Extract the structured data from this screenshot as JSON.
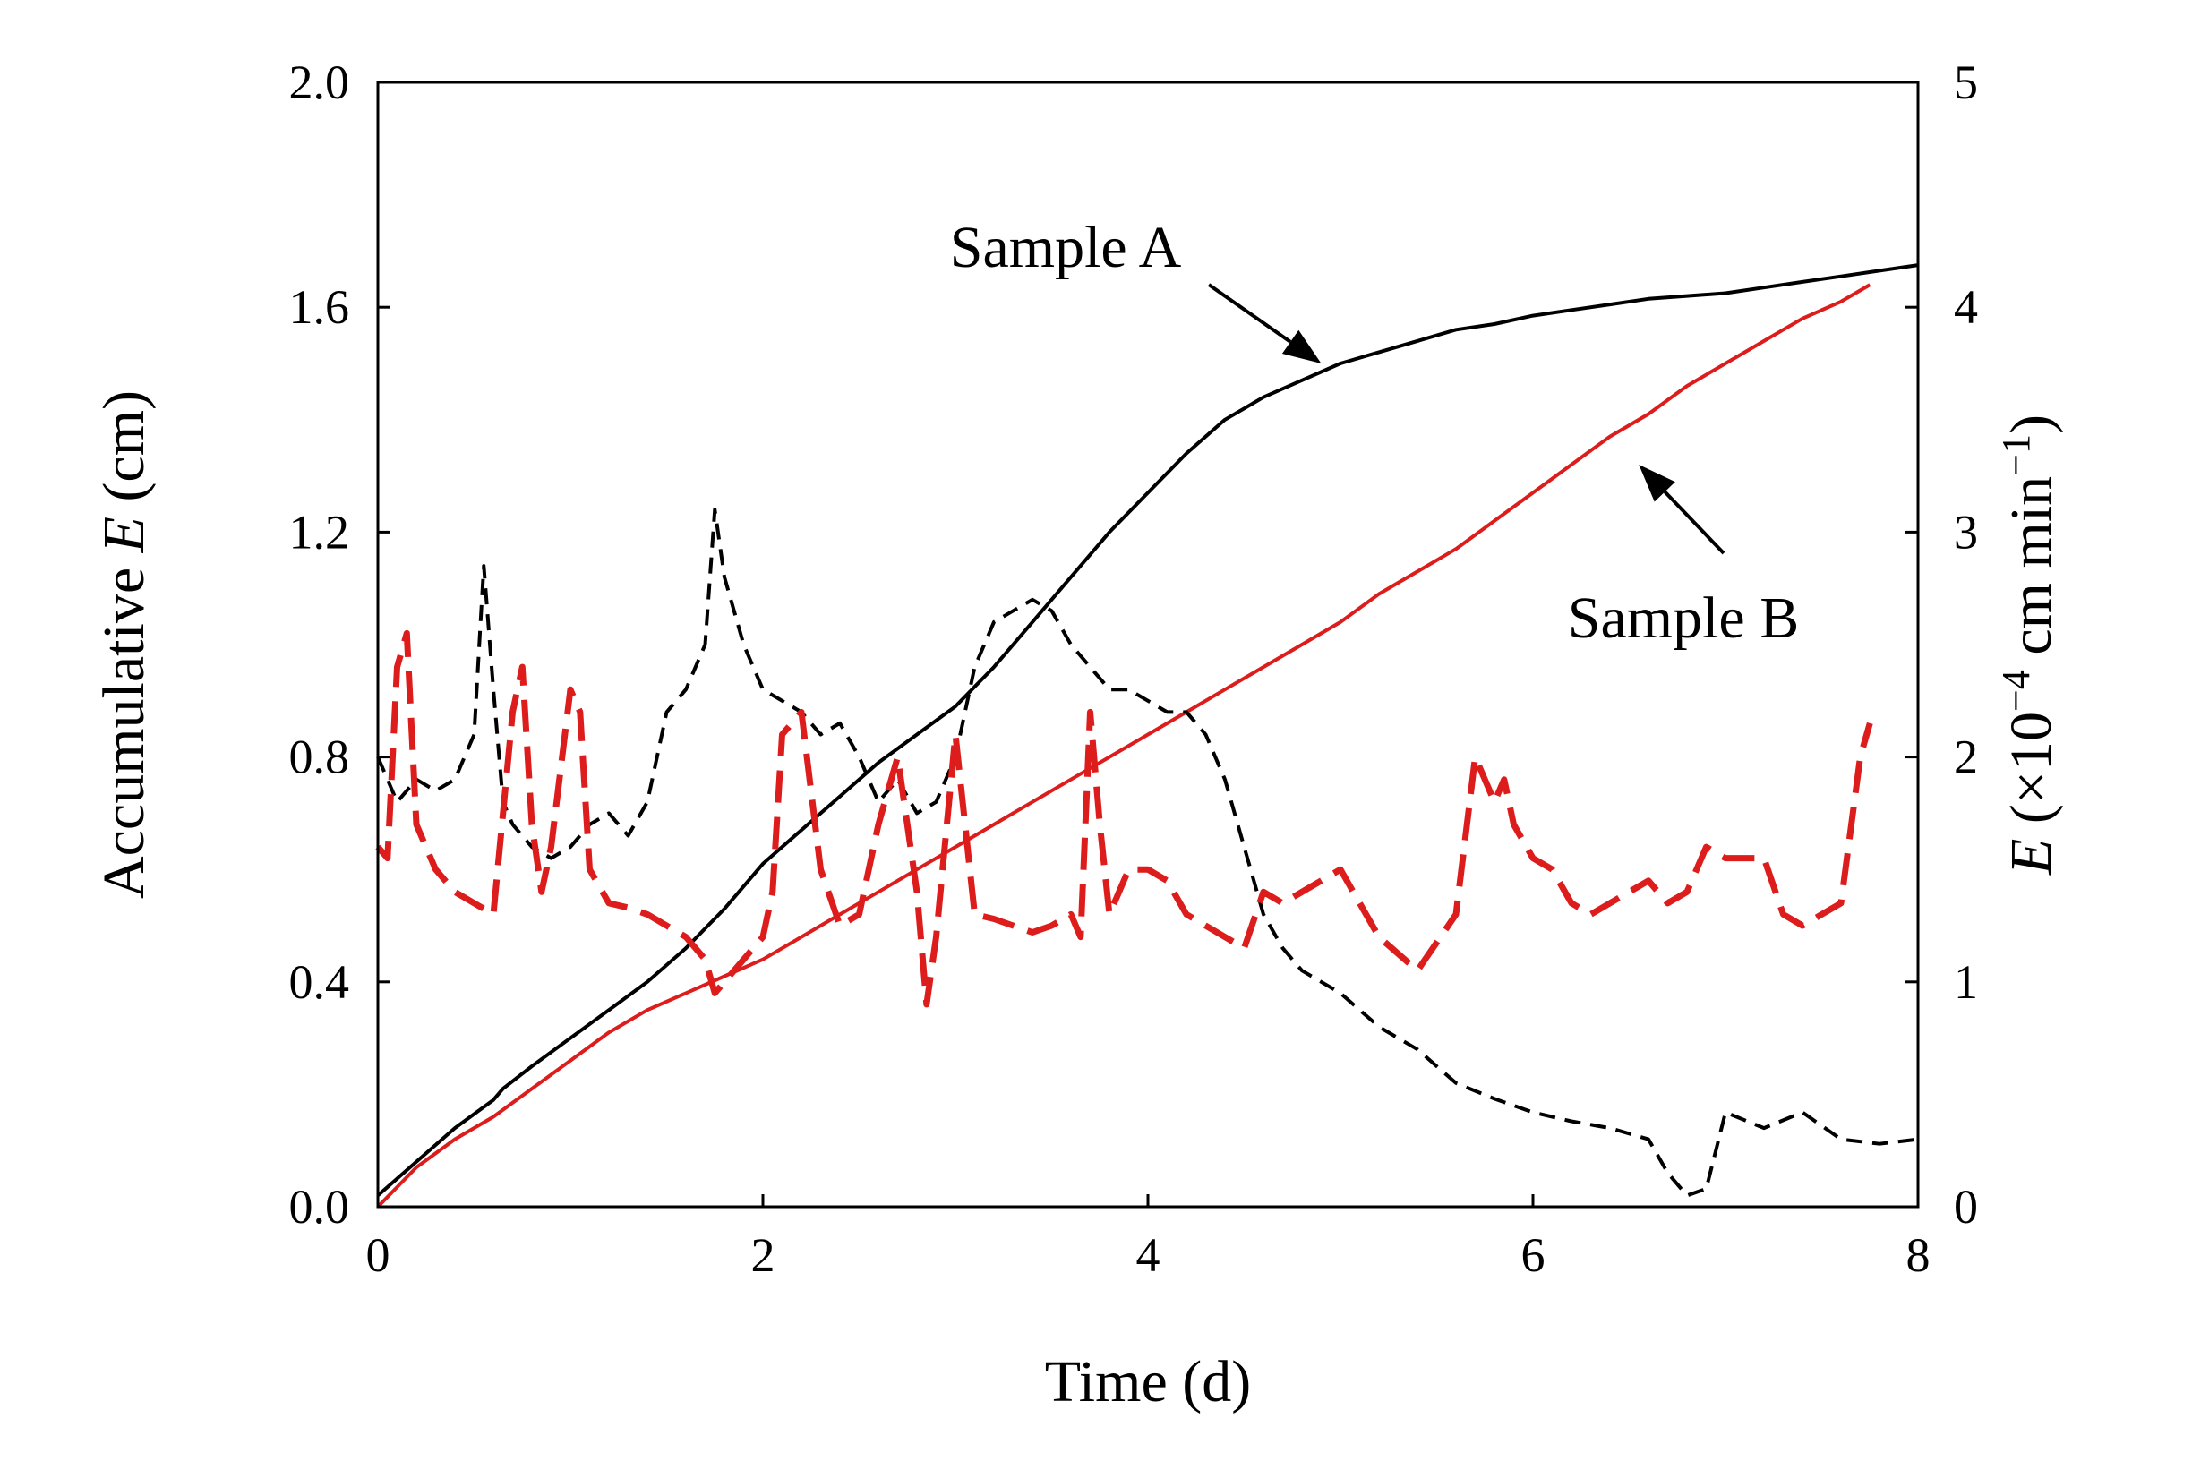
{
  "chart_data": {
    "type": "line",
    "title": "",
    "xlabel": "Time (d)",
    "ylabel_left": {
      "prefix": "Accumulative ",
      "symbol": "E",
      "suffix": " (cm)"
    },
    "ylabel_right": {
      "symbol": "E",
      "open": " (×10",
      "exponent": "−4",
      "unit": " cm min",
      "unit_exponent": "−1",
      "close": ")"
    },
    "xlim": [
      0,
      8
    ],
    "ylim_left": [
      0,
      2.0
    ],
    "ylim_right": [
      0,
      5
    ],
    "xticks": [
      0,
      2,
      4,
      6,
      8
    ],
    "xtick_labels": [
      "0",
      "2",
      "4",
      "6",
      "8"
    ],
    "yticks_left": [
      0,
      0.4,
      0.8,
      1.2,
      1.6,
      2.0
    ],
    "ytick_labels_left": [
      "0.0",
      "0.4",
      "0.8",
      "1.2",
      "1.6",
      "2.0"
    ],
    "yticks_right": [
      0,
      1,
      2,
      3,
      4,
      5
    ],
    "ytick_labels_right": [
      "0",
      "1",
      "2",
      "3",
      "4",
      "5"
    ],
    "grid": false,
    "colors": {
      "sample_a": "#000000",
      "sample_b": "#dd1c1c",
      "axes": "#000000"
    },
    "series": [
      {
        "name": "Sample A accumulative E",
        "axis": "left",
        "style": "solid",
        "color": "#000000",
        "x": [
          0,
          0.2,
          0.4,
          0.6,
          0.65,
          0.8,
          1.0,
          1.2,
          1.4,
          1.6,
          1.8,
          2.0,
          2.2,
          2.4,
          2.6,
          2.8,
          3.0,
          3.2,
          3.4,
          3.6,
          3.8,
          4.0,
          4.2,
          4.4,
          4.6,
          4.8,
          5.0,
          5.2,
          5.4,
          5.6,
          5.8,
          6.0,
          6.2,
          6.4,
          6.6,
          6.8,
          7.0,
          7.2,
          7.4,
          7.6,
          7.8,
          8.0
        ],
        "y": [
          0.02,
          0.08,
          0.14,
          0.19,
          0.21,
          0.25,
          0.3,
          0.35,
          0.4,
          0.46,
          0.53,
          0.61,
          0.67,
          0.73,
          0.79,
          0.84,
          0.89,
          0.96,
          1.04,
          1.12,
          1.2,
          1.27,
          1.34,
          1.4,
          1.44,
          1.47,
          1.5,
          1.52,
          1.54,
          1.56,
          1.57,
          1.585,
          1.595,
          1.605,
          1.615,
          1.62,
          1.625,
          1.635,
          1.645,
          1.655,
          1.665,
          1.675
        ]
      },
      {
        "name": "Sample B accumulative E",
        "axis": "left",
        "style": "solid",
        "color": "#dd1c1c",
        "x": [
          0,
          0.2,
          0.4,
          0.6,
          0.8,
          1.0,
          1.2,
          1.4,
          1.6,
          1.8,
          2.0,
          2.2,
          2.4,
          2.6,
          2.8,
          3.0,
          3.2,
          3.4,
          3.6,
          3.8,
          4.0,
          4.2,
          4.4,
          4.6,
          4.8,
          5.0,
          5.2,
          5.4,
          5.6,
          5.8,
          6.0,
          6.2,
          6.4,
          6.6,
          6.8,
          7.0,
          7.2,
          7.4,
          7.6,
          7.75
        ],
        "y": [
          0.0,
          0.07,
          0.12,
          0.16,
          0.21,
          0.26,
          0.31,
          0.35,
          0.38,
          0.41,
          0.44,
          0.48,
          0.52,
          0.56,
          0.6,
          0.64,
          0.68,
          0.72,
          0.76,
          0.8,
          0.84,
          0.88,
          0.92,
          0.96,
          1.0,
          1.04,
          1.09,
          1.13,
          1.17,
          1.22,
          1.27,
          1.32,
          1.37,
          1.41,
          1.46,
          1.5,
          1.54,
          1.58,
          1.61,
          1.64
        ]
      },
      {
        "name": "Sample A E rate",
        "axis": "right",
        "style": "dashed",
        "color": "#000000",
        "x": [
          0,
          0.1,
          0.2,
          0.3,
          0.4,
          0.5,
          0.55,
          0.6,
          0.65,
          0.7,
          0.8,
          0.9,
          1.0,
          1.1,
          1.2,
          1.3,
          1.4,
          1.5,
          1.6,
          1.7,
          1.75,
          1.8,
          1.9,
          2.0,
          2.1,
          2.2,
          2.3,
          2.4,
          2.5,
          2.6,
          2.7,
          2.8,
          2.9,
          3.0,
          3.1,
          3.2,
          3.3,
          3.4,
          3.5,
          3.6,
          3.7,
          3.8,
          3.9,
          4.0,
          4.1,
          4.2,
          4.3,
          4.4,
          4.5,
          4.6,
          4.7,
          4.8,
          5.0,
          5.2,
          5.4,
          5.6,
          5.8,
          6.0,
          6.2,
          6.4,
          6.6,
          6.7,
          6.8,
          6.9,
          7.0,
          7.2,
          7.4,
          7.6,
          7.8,
          8.0
        ],
        "y": [
          2.0,
          1.8,
          1.9,
          1.85,
          1.9,
          2.1,
          2.85,
          2.3,
          1.8,
          1.7,
          1.6,
          1.55,
          1.6,
          1.7,
          1.75,
          1.65,
          1.8,
          2.2,
          2.3,
          2.5,
          3.1,
          2.8,
          2.5,
          2.3,
          2.25,
          2.2,
          2.1,
          2.15,
          2.0,
          1.8,
          1.9,
          1.75,
          1.8,
          2.0,
          2.4,
          2.6,
          2.65,
          2.7,
          2.65,
          2.5,
          2.4,
          2.3,
          2.3,
          2.25,
          2.2,
          2.2,
          2.1,
          1.9,
          1.6,
          1.3,
          1.15,
          1.05,
          0.95,
          0.8,
          0.7,
          0.55,
          0.48,
          0.42,
          0.38,
          0.35,
          0.3,
          0.15,
          0.05,
          0.08,
          0.42,
          0.35,
          0.42,
          0.3,
          0.28,
          0.3
        ]
      },
      {
        "name": "Sample B E rate",
        "axis": "right",
        "style": "dashed",
        "color": "#dd1c1c",
        "x": [
          0,
          0.05,
          0.1,
          0.15,
          0.2,
          0.3,
          0.4,
          0.5,
          0.6,
          0.7,
          0.75,
          0.8,
          0.85,
          0.9,
          1.0,
          1.05,
          1.1,
          1.2,
          1.3,
          1.4,
          1.5,
          1.6,
          1.7,
          1.75,
          1.8,
          1.9,
          2.0,
          2.05,
          2.1,
          2.2,
          2.3,
          2.4,
          2.5,
          2.6,
          2.7,
          2.8,
          2.85,
          2.9,
          3.0,
          3.1,
          3.2,
          3.3,
          3.4,
          3.5,
          3.6,
          3.65,
          3.7,
          3.75,
          3.8,
          3.9,
          4.0,
          4.1,
          4.2,
          4.3,
          4.4,
          4.5,
          4.6,
          4.7,
          4.8,
          4.9,
          5.0,
          5.2,
          5.4,
          5.6,
          5.7,
          5.8,
          5.85,
          5.9,
          6.0,
          6.1,
          6.2,
          6.3,
          6.4,
          6.5,
          6.6,
          6.7,
          6.8,
          6.9,
          7.0,
          7.2,
          7.3,
          7.4,
          7.5,
          7.6,
          7.7,
          7.75
        ],
        "y": [
          1.6,
          1.55,
          2.4,
          2.55,
          1.7,
          1.5,
          1.4,
          1.35,
          1.3,
          2.2,
          2.4,
          1.7,
          1.4,
          1.6,
          2.3,
          2.2,
          1.5,
          1.35,
          1.33,
          1.3,
          1.25,
          1.2,
          1.1,
          0.95,
          1.0,
          1.1,
          1.2,
          1.4,
          2.1,
          2.2,
          1.5,
          1.25,
          1.3,
          1.7,
          2.0,
          1.4,
          0.9,
          1.2,
          2.1,
          1.3,
          1.28,
          1.25,
          1.22,
          1.25,
          1.3,
          1.2,
          2.2,
          1.7,
          1.3,
          1.5,
          1.5,
          1.45,
          1.3,
          1.25,
          1.2,
          1.15,
          1.4,
          1.35,
          1.4,
          1.45,
          1.5,
          1.2,
          1.05,
          1.3,
          2.0,
          1.8,
          1.9,
          1.7,
          1.55,
          1.5,
          1.35,
          1.3,
          1.35,
          1.4,
          1.45,
          1.35,
          1.4,
          1.6,
          1.55,
          1.55,
          1.3,
          1.25,
          1.3,
          1.35,
          2.0,
          2.15
        ]
      }
    ],
    "annotations": [
      {
        "text": "Sample A",
        "target_series": "Sample A accumulative E",
        "target_x": 4.9,
        "target_y": 1.5
      },
      {
        "text": "Sample B",
        "target_series": "Sample B accumulative E",
        "target_x": 6.55,
        "target_y": 1.32
      }
    ]
  }
}
